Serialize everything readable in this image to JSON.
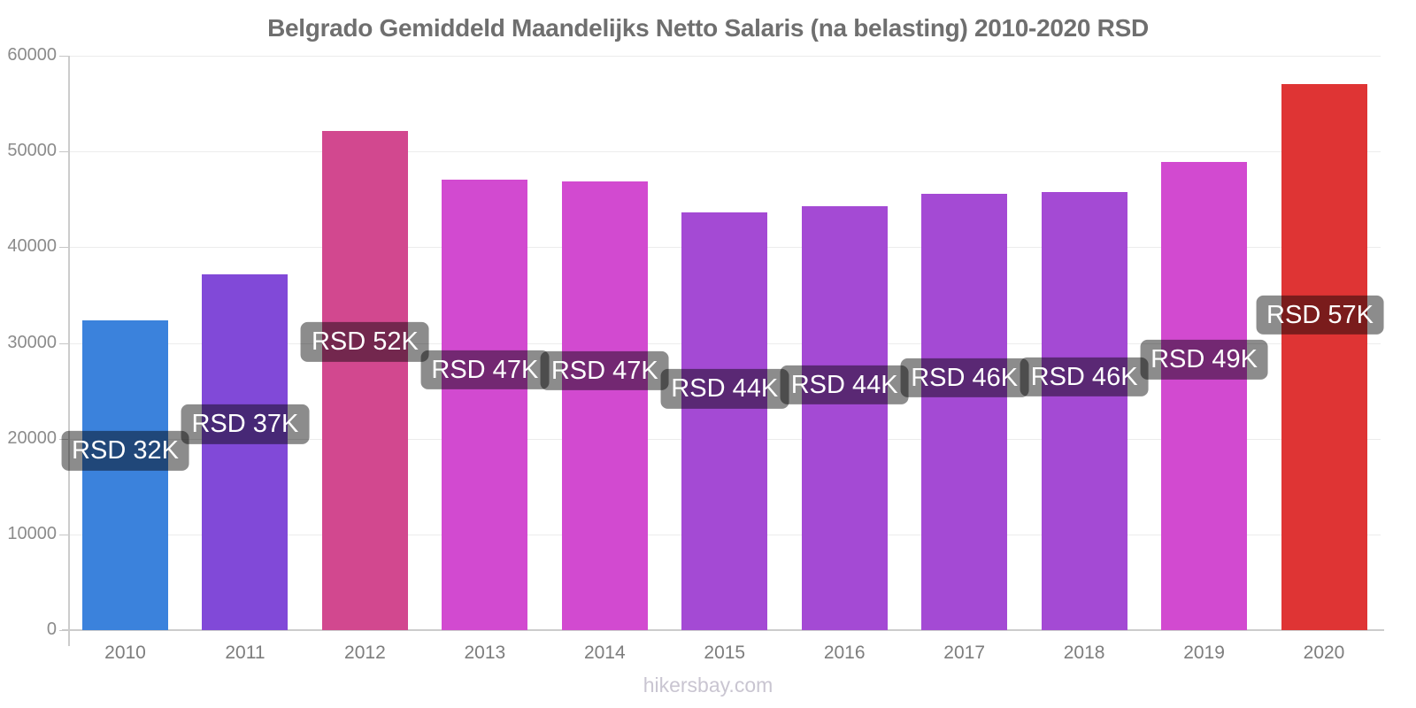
{
  "title": "Belgrado Gemiddeld Maandelijks Netto Salaris (na belasting) 2010-2020 RSD",
  "footer": "hikersbay.com",
  "chart_data": {
    "type": "bar",
    "title": "Belgrado Gemiddeld Maandelijks Netto Salaris (na belasting) 2010-2020 RSD",
    "categories": [
      "2010",
      "2011",
      "2012",
      "2013",
      "2014",
      "2015",
      "2016",
      "2017",
      "2018",
      "2019",
      "2020"
    ],
    "values": [
      32400,
      37200,
      52100,
      47100,
      46900,
      43600,
      44300,
      45600,
      45800,
      48900,
      57000
    ],
    "value_labels": [
      "RSD 32K",
      "RSD 37K",
      "RSD 52K",
      "RSD 47K",
      "RSD 47K",
      "RSD 44K",
      "RSD 44K",
      "RSD 46K",
      "RSD 46K",
      "RSD 49K",
      "RSD 57K"
    ],
    "bar_colors": [
      "#3B82DC",
      "#8149D8",
      "#D2488F",
      "#D24AD0",
      "#D24AD0",
      "#A44AD4",
      "#A44AD4",
      "#A44AD4",
      "#A44AD4",
      "#D24AD0",
      "#DF3434"
    ],
    "yticks": [
      0,
      10000,
      20000,
      30000,
      40000,
      50000,
      60000
    ],
    "ytick_labels": [
      "0",
      "10000",
      "20000",
      "30000",
      "40000",
      "50000",
      "60000"
    ],
    "ylim": [
      0,
      60000
    ],
    "xlabel": "",
    "ylabel": "",
    "grid": true,
    "legend": "none",
    "currency": "RSD",
    "label_style": {
      "text_color": "#ffffff",
      "background": "rgba(0,0,0,0.45)"
    }
  }
}
